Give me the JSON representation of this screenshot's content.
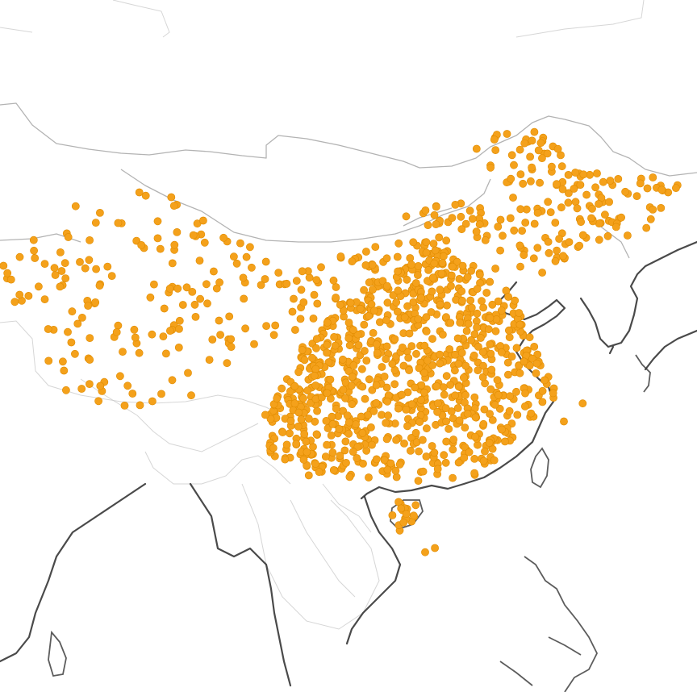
{
  "map": {
    "colors": {
      "background": "#ffffff",
      "point_fill": "#f4a11b",
      "point_stroke": "#e08c00",
      "coastline": "#2a2a2a",
      "border": "#9a9a9a"
    },
    "point_shape": "circle",
    "regions": [
      {
        "name": "northeast",
        "count": 150,
        "poly": [
          [
            0.67,
            0.19
          ],
          [
            0.74,
            0.17
          ],
          [
            0.86,
            0.25
          ],
          [
            0.98,
            0.26
          ],
          [
            0.99,
            0.29
          ],
          [
            0.92,
            0.34
          ],
          [
            0.83,
            0.37
          ],
          [
            0.77,
            0.4
          ],
          [
            0.72,
            0.38
          ],
          [
            0.7,
            0.32
          ],
          [
            0.74,
            0.28
          ],
          [
            0.7,
            0.25
          ]
        ]
      },
      {
        "name": "north-arc",
        "count": 35,
        "poly": [
          [
            0.59,
            0.3
          ],
          [
            0.68,
            0.29
          ],
          [
            0.73,
            0.33
          ],
          [
            0.7,
            0.36
          ],
          [
            0.61,
            0.37
          ],
          [
            0.57,
            0.33
          ]
        ]
      },
      {
        "name": "xinjiang",
        "count": 160,
        "poly": [
          [
            0.0,
            0.4
          ],
          [
            0.08,
            0.31
          ],
          [
            0.18,
            0.26
          ],
          [
            0.24,
            0.28
          ],
          [
            0.34,
            0.33
          ],
          [
            0.4,
            0.39
          ],
          [
            0.43,
            0.48
          ],
          [
            0.38,
            0.53
          ],
          [
            0.3,
            0.57
          ],
          [
            0.18,
            0.59
          ],
          [
            0.09,
            0.57
          ],
          [
            0.04,
            0.48
          ]
        ]
      },
      {
        "name": "gansu-inner-mongolia",
        "count": 85,
        "poly": [
          [
            0.4,
            0.4
          ],
          [
            0.52,
            0.36
          ],
          [
            0.62,
            0.34
          ],
          [
            0.66,
            0.38
          ],
          [
            0.6,
            0.42
          ],
          [
            0.5,
            0.46
          ],
          [
            0.42,
            0.47
          ]
        ]
      },
      {
        "name": "core",
        "count": 850,
        "dense": true,
        "poly": [
          [
            0.44,
            0.49
          ],
          [
            0.52,
            0.42
          ],
          [
            0.62,
            0.36
          ],
          [
            0.71,
            0.38
          ],
          [
            0.74,
            0.43
          ],
          [
            0.78,
            0.53
          ],
          [
            0.8,
            0.57
          ],
          [
            0.74,
            0.63
          ],
          [
            0.69,
            0.69
          ],
          [
            0.6,
            0.7
          ],
          [
            0.52,
            0.69
          ],
          [
            0.45,
            0.69
          ],
          [
            0.39,
            0.67
          ],
          [
            0.38,
            0.6
          ],
          [
            0.41,
            0.54
          ]
        ]
      },
      {
        "name": "hainan",
        "count": 18,
        "dense": true,
        "poly": [
          [
            0.56,
            0.73
          ],
          [
            0.58,
            0.72
          ],
          [
            0.6,
            0.73
          ],
          [
            0.59,
            0.76
          ],
          [
            0.57,
            0.77
          ],
          [
            0.56,
            0.75
          ]
        ]
      }
    ],
    "extra_points": [
      [
        0.836,
        0.583
      ],
      [
        0.809,
        0.609
      ],
      [
        0.61,
        0.798
      ],
      [
        0.624,
        0.792
      ],
      [
        0.005,
        0.384
      ],
      [
        0.016,
        0.404
      ],
      [
        0.028,
        0.426
      ]
    ],
    "seed": 20240611
  }
}
